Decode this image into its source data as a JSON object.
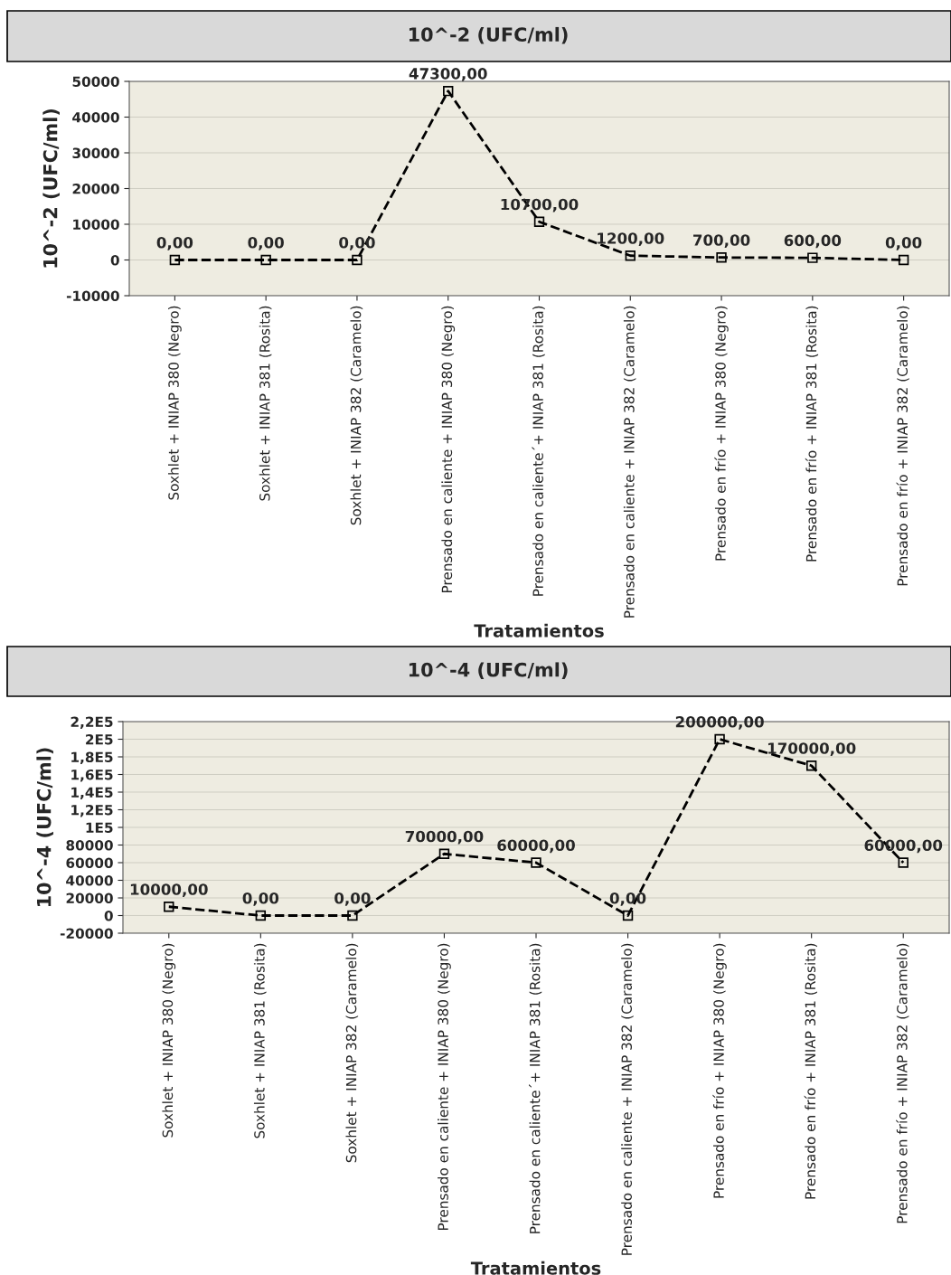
{
  "chart_data": [
    {
      "type": "line",
      "title": "10^-2 (UFC/ml)",
      "ylabel": "10^-2 (UFC/ml)",
      "xlabel": "Tratamientos",
      "categories": [
        "Soxhlet + INIAP 380 (Negro)",
        "Soxhlet + INIAP 381 (Rosita)",
        "Soxhlet + INIAP 382 (Caramelo)",
        "Prensado en caliente + INIAP 380 (Negro)",
        "Prensado en caliente´+ INIAP 381 (Rosita)",
        "Prensado en caliente + INIAP 382 (Caramelo)",
        "Prensado en frío + INIAP 380 (Negro)",
        "Prensado en frío + INIAP 381 (Rosita)",
        "Prensado en frío + INIAP 382 (Caramelo)"
      ],
      "series": [
        {
          "color": "#000000",
          "values": [
            0,
            0,
            0,
            47300,
            10700,
            1200,
            700,
            600,
            0
          ],
          "value_labels": [
            "0,00",
            "0,00",
            "0,00",
            "47300,00",
            "10700,00",
            "1200,00",
            "700,00",
            "600,00",
            "0,00"
          ]
        }
      ],
      "ylim": [
        -10000,
        50000
      ],
      "yticks": [
        -10000,
        0,
        10000,
        20000,
        30000,
        40000,
        50000
      ],
      "grid": "y",
      "marker": "square",
      "line_style": "dashed",
      "legend": false
    },
    {
      "type": "line",
      "title": "10^-4 (UFC/ml)",
      "ylabel": "10^-4 (UFC/ml)",
      "xlabel": "Tratamientos",
      "categories": [
        "Soxhlet + INIAP 380 (Negro)",
        "Soxhlet + INIAP 381 (Rosita)",
        "Soxhlet + INIAP 382 (Caramelo)",
        "Prensado en caliente + INIAP 380 (Negro)",
        "Prensado en caliente´+ INIAP 381 (Rosita)",
        "Prensado en caliente + INIAP 382 (Caramelo)",
        "Prensado en frío + INIAP 380 (Negro)",
        "Prensado en frío + INIAP 381 (Rosita)",
        "Prensado en frío + INIAP 382 (Caramelo)"
      ],
      "series": [
        {
          "color": "#000000",
          "values": [
            10000,
            0,
            0,
            70000,
            60000,
            0,
            200000,
            170000,
            60000
          ],
          "value_labels": [
            "10000,00",
            "0,00",
            "0,00",
            "70000,00",
            "60000,00",
            "0,00",
            "200000,00",
            "170000,00",
            "60000,00"
          ]
        }
      ],
      "ylim": [
        -20000,
        220000
      ],
      "yticks": [
        -20000,
        0,
        20000,
        40000,
        60000,
        80000,
        {
          "value": 100000,
          "label": "1E5"
        },
        {
          "value": 120000,
          "label": "1,2E5"
        },
        {
          "value": 140000,
          "label": "1,4E5"
        },
        {
          "value": 160000,
          "label": "1,6E5"
        },
        {
          "value": 180000,
          "label": "1,8E5"
        },
        {
          "value": 200000,
          "label": "2E5"
        },
        {
          "value": 220000,
          "label": "2,2E5"
        }
      ],
      "grid": "y",
      "marker": "square",
      "line_style": "dashed",
      "legend": false
    }
  ]
}
